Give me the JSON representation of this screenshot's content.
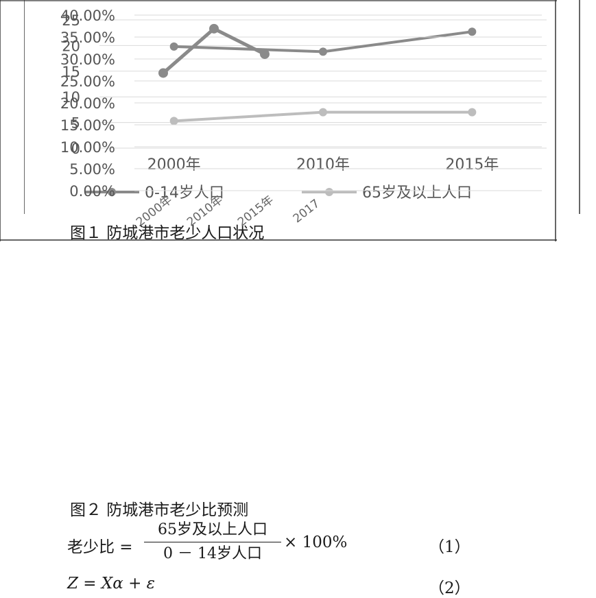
{
  "chart_data": [
    {
      "type": "line",
      "categories": [
        "2000年",
        "2010年",
        "2015年"
      ],
      "series": [
        {
          "name": "0-14岁人口",
          "values": [
            19.8,
            18.8,
            22.7
          ],
          "color": "#8a8a8a"
        },
        {
          "name": "65岁及以上人口",
          "values": [
            5.3,
            7.0,
            7.0
          ],
          "color": "#bdbdbd"
        }
      ],
      "ylim": [
        0,
        25
      ],
      "yticks": [
        "0",
        "5",
        "10",
        "15",
        "20",
        "25"
      ],
      "grid": true,
      "legend": "bottom"
    },
    {
      "type": "line",
      "categories": [
        "2000年",
        "2010年",
        "2015年",
        "2017"
      ],
      "series": [
        {
          "values": [
            26.8,
            36.9,
            31.1,
            null
          ],
          "color": "#8a8a8a"
        }
      ],
      "ylim": [
        0,
        40
      ],
      "yticks": [
        "0.00%",
        "5.00%",
        "10.00%",
        "15.00%",
        "20.00%",
        "25.00%",
        "30.00%",
        "35.00%",
        "40.00%"
      ],
      "grid": true,
      "legend": "none"
    }
  ],
  "captions": {
    "fig1": "图１ 防城港市老少人口状况",
    "fig2": "图２ 防城港市老少比预测"
  },
  "equations": {
    "eq1_lhs": "老少比 =",
    "eq1_numerator": "65岁及以上人口",
    "eq1_denominator": "0 － 14岁人口",
    "eq1_rhs": "× 100%",
    "eq1_number": "（1）",
    "eq2_body": "Z = Xα + ε",
    "eq2_number": "（2）"
  }
}
